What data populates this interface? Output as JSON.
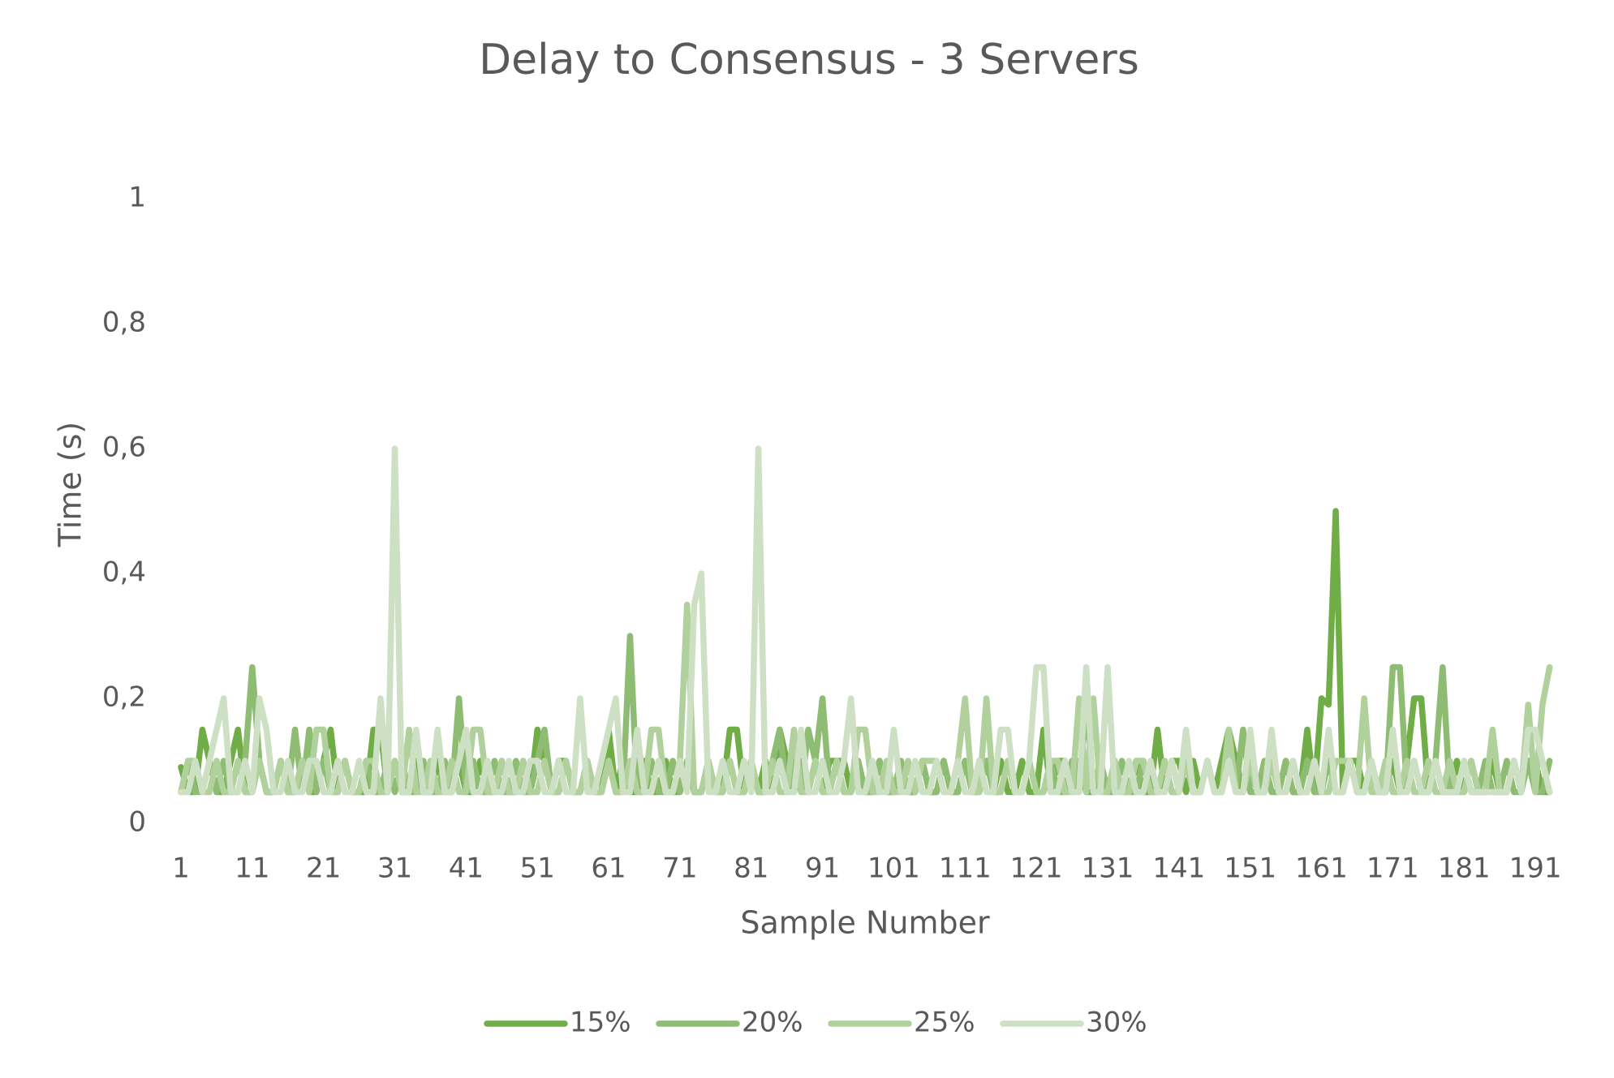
{
  "chart_data": {
    "type": "line",
    "title": "Delay to Consensus - 3 Servers",
    "x_label": "Sample Number",
    "y_label": "Time (s)",
    "x": [
      1,
      2,
      3,
      4,
      5,
      6,
      7,
      8,
      9,
      10,
      11,
      12,
      13,
      14,
      15,
      16,
      17,
      18,
      19,
      20,
      21,
      22,
      23,
      24,
      25,
      26,
      27,
      28,
      29,
      30,
      31,
      32,
      33,
      34,
      35,
      36,
      37,
      38,
      39,
      40,
      41,
      42,
      43,
      44,
      45,
      46,
      47,
      48,
      49,
      50,
      51,
      52,
      53,
      54,
      55,
      56,
      57,
      58,
      59,
      60,
      61,
      62,
      63,
      64,
      65,
      66,
      67,
      68,
      69,
      70,
      71,
      72,
      73,
      74,
      75,
      76,
      77,
      78,
      79,
      80,
      81,
      82,
      83,
      84,
      85,
      86,
      87,
      88,
      89,
      90,
      91,
      92,
      93,
      94,
      95,
      96,
      97,
      98,
      99,
      100,
      101,
      102,
      103,
      104,
      105,
      106,
      107,
      108,
      109,
      110,
      111,
      112,
      113,
      114,
      115,
      116,
      117,
      118,
      119,
      120,
      121,
      122,
      123,
      124,
      125,
      126,
      127,
      128,
      129,
      130,
      131,
      132,
      133,
      134,
      135,
      136,
      137,
      138,
      139,
      140,
      141,
      142,
      143,
      144,
      145,
      146,
      147,
      148,
      149,
      150,
      151,
      152,
      153,
      154,
      155,
      156,
      157,
      158,
      159,
      160,
      161,
      162,
      163,
      164,
      165,
      166,
      167,
      168,
      169,
      170,
      171,
      172,
      173,
      174,
      175,
      176,
      177,
      178,
      179,
      180,
      181,
      182,
      183,
      184,
      185,
      186,
      187,
      188,
      189,
      190,
      191,
      192,
      193
    ],
    "xlim": [
      0.5,
      193.5
    ],
    "xticks": [
      1,
      11,
      21,
      31,
      41,
      51,
      61,
      71,
      81,
      91,
      101,
      111,
      121,
      131,
      141,
      151,
      161,
      171,
      181,
      191
    ],
    "ylim": [
      0,
      1
    ],
    "yticks": [
      0,
      {
        "value": 0.2,
        "label": "0,2"
      },
      {
        "value": 0.4,
        "label": "0,4"
      },
      {
        "value": 0.6,
        "label": "0,6"
      },
      {
        "value": 0.8,
        "label": "0,8"
      },
      1
    ],
    "grid": false,
    "legend": "bottom",
    "series": [
      {
        "name": "15%",
        "color": "#70ad47",
        "values": [
          0.09,
          0.05,
          0.05,
          0.15,
          0.1,
          0.05,
          0.05,
          0.1,
          0.15,
          0.05,
          0.05,
          0.1,
          0.05,
          0.05,
          0.1,
          0.05,
          0.05,
          0.1,
          0.05,
          0.05,
          0.1,
          0.15,
          0.05,
          0.1,
          0.05,
          0.05,
          0.05,
          0.15,
          0.15,
          0.05,
          0.1,
          0.05,
          0.05,
          0.1,
          0.05,
          0.05,
          0.1,
          0.05,
          0.05,
          0.1,
          0.05,
          0.05,
          0.1,
          0.05,
          0.05,
          0.1,
          0.05,
          0.05,
          0.1,
          0.05,
          0.15,
          0.1,
          0.05,
          0.1,
          0.1,
          0.05,
          0.05,
          0.1,
          0.05,
          0.05,
          0.15,
          0.05,
          0.1,
          0.05,
          0.05,
          0.1,
          0.05,
          0.05,
          0.1,
          0.05,
          0.05,
          0.1,
          0.05,
          0.05,
          0.1,
          0.05,
          0.05,
          0.15,
          0.15,
          0.05,
          0.1,
          0.05,
          0.1,
          0.05,
          0.15,
          0.1,
          0.05,
          0.1,
          0.05,
          0.1,
          0.05,
          0.1,
          0.1,
          0.1,
          0.05,
          0.1,
          0.05,
          0.05,
          0.1,
          0.05,
          0.05,
          0.1,
          0.05,
          0.05,
          0.1,
          0.05,
          0.05,
          0.1,
          0.05,
          0.05,
          0.1,
          0.05,
          0.1,
          0.1,
          0.05,
          0.1,
          0.05,
          0.05,
          0.1,
          0.05,
          0.05,
          0.15,
          0.05,
          0.1,
          0.1,
          0.05,
          0.1,
          0.05,
          0.05,
          0.1,
          0.05,
          0.1,
          0.05,
          0.05,
          0.1,
          0.05,
          0.05,
          0.15,
          0.05,
          0.1,
          0.1,
          0.05,
          0.1,
          0.05,
          0.1,
          0.05,
          0.1,
          0.15,
          0.1,
          0.05,
          0.1,
          0.05,
          0.05,
          0.1,
          0.05,
          0.1,
          0.05,
          0.05,
          0.15,
          0.05,
          0.2,
          0.19,
          0.5,
          0.05,
          0.1,
          0.1,
          0.05,
          0.1,
          0.05,
          0.05,
          0.1,
          0.05,
          0.1,
          0.2,
          0.2,
          0.05,
          0.1,
          0.05,
          0.05,
          0.1,
          0.05,
          0.1,
          0.05,
          0.05,
          0.1,
          0.05,
          0.05,
          0.1,
          0.05,
          0.1,
          0.1,
          0.05,
          0.05
        ]
      },
      {
        "name": "20%",
        "color": "#8fbc73",
        "values": [
          0.05,
          0.1,
          0.05,
          0.05,
          0.1,
          0.05,
          0.1,
          0.05,
          0.05,
          0.1,
          0.25,
          0.1,
          0.05,
          0.05,
          0.1,
          0.05,
          0.15,
          0.05,
          0.15,
          0.05,
          0.1,
          0.05,
          0.05,
          0.1,
          0.05,
          0.05,
          0.1,
          0.05,
          0.05,
          0.1,
          0.05,
          0.1,
          0.05,
          0.05,
          0.1,
          0.05,
          0.05,
          0.1,
          0.05,
          0.2,
          0.05,
          0.1,
          0.05,
          0.05,
          0.1,
          0.05,
          0.05,
          0.1,
          0.05,
          0.05,
          0.1,
          0.15,
          0.05,
          0.05,
          0.1,
          0.05,
          0.05,
          0.1,
          0.05,
          0.05,
          0.1,
          0.05,
          0.05,
          0.3,
          0.05,
          0.05,
          0.1,
          0.05,
          0.05,
          0.1,
          0.05,
          0.1,
          0.05,
          0.05,
          0.1,
          0.05,
          0.05,
          0.1,
          0.05,
          0.05,
          0.1,
          0.05,
          0.05,
          0.1,
          0.15,
          0.05,
          0.1,
          0.05,
          0.15,
          0.1,
          0.2,
          0.05,
          0.1,
          0.05,
          0.05,
          0.1,
          0.05,
          0.05,
          0.1,
          0.05,
          0.05,
          0.1,
          0.05,
          0.05,
          0.1,
          0.05,
          0.05,
          0.1,
          0.05,
          0.05,
          0.1,
          0.05,
          0.05,
          0.1,
          0.05,
          0.05,
          0.1,
          0.05,
          0.05,
          0.1,
          0.05,
          0.05,
          0.1,
          0.05,
          0.05,
          0.1,
          0.05,
          0.2,
          0.05,
          0.1,
          0.05,
          0.05,
          0.1,
          0.05,
          0.05,
          0.1,
          0.05,
          0.05,
          0.1,
          0.05,
          0.05,
          0.1,
          0.05,
          0.05,
          0.1,
          0.05,
          0.05,
          0.1,
          0.05,
          0.15,
          0.05,
          0.05,
          0.1,
          0.05,
          0.05,
          0.1,
          0.05,
          0.05,
          0.1,
          0.05,
          0.05,
          0.1,
          0.05,
          0.05,
          0.1,
          0.05,
          0.05,
          0.1,
          0.05,
          0.05,
          0.25,
          0.25,
          0.05,
          0.1,
          0.05,
          0.05,
          0.1,
          0.25,
          0.05,
          0.05,
          0.1,
          0.05,
          0.05,
          0.1,
          0.05,
          0.05,
          0.1,
          0.05,
          0.05,
          0.1,
          0.05,
          0.05,
          0.1
        ]
      },
      {
        "name": "25%",
        "color": "#b0d09c",
        "values": [
          0.05,
          0.1,
          0.1,
          0.05,
          0.05,
          0.1,
          0.05,
          0.05,
          0.1,
          0.05,
          0.05,
          0.1,
          0.05,
          0.05,
          0.1,
          0.05,
          0.05,
          0.1,
          0.05,
          0.15,
          0.15,
          0.05,
          0.05,
          0.1,
          0.05,
          0.05,
          0.1,
          0.1,
          0.05,
          0.05,
          0.1,
          0.05,
          0.15,
          0.05,
          0.05,
          0.1,
          0.05,
          0.05,
          0.1,
          0.05,
          0.05,
          0.15,
          0.15,
          0.05,
          0.05,
          0.1,
          0.05,
          0.05,
          0.1,
          0.05,
          0.05,
          0.1,
          0.05,
          0.05,
          0.1,
          0.05,
          0.05,
          0.1,
          0.05,
          0.05,
          0.1,
          0.05,
          0.05,
          0.1,
          0.05,
          0.05,
          0.15,
          0.15,
          0.05,
          0.05,
          0.1,
          0.35,
          0.05,
          0.05,
          0.1,
          0.05,
          0.05,
          0.1,
          0.05,
          0.05,
          0.1,
          0.05,
          0.05,
          0.1,
          0.05,
          0.05,
          0.15,
          0.05,
          0.05,
          0.1,
          0.05,
          0.05,
          0.1,
          0.05,
          0.05,
          0.15,
          0.15,
          0.05,
          0.05,
          0.1,
          0.05,
          0.05,
          0.1,
          0.05,
          0.1,
          0.1,
          0.1,
          0.05,
          0.05,
          0.1,
          0.2,
          0.05,
          0.05,
          0.2,
          0.05,
          0.05,
          0.1,
          0.05,
          0.05,
          0.1,
          0.05,
          0.05,
          0.1,
          0.1,
          0.05,
          0.05,
          0.2,
          0.05,
          0.2,
          0.05,
          0.05,
          0.1,
          0.05,
          0.05,
          0.1,
          0.1,
          0.05,
          0.05,
          0.1,
          0.05,
          0.05,
          0.1,
          0.05,
          0.05,
          0.1,
          0.05,
          0.05,
          0.15,
          0.05,
          0.05,
          0.1,
          0.05,
          0.05,
          0.1,
          0.05,
          0.05,
          0.1,
          0.05,
          0.05,
          0.1,
          0.05,
          0.05,
          0.1,
          0.1,
          0.1,
          0.05,
          0.2,
          0.05,
          0.05,
          0.1,
          0.05,
          0.05,
          0.1,
          0.05,
          0.05,
          0.1,
          0.05,
          0.05,
          0.1,
          0.05,
          0.05,
          0.1,
          0.05,
          0.05,
          0.15,
          0.05,
          0.05,
          0.1,
          0.05,
          0.19,
          0.05,
          0.19,
          0.25
        ]
      },
      {
        "name": "30%",
        "color": "#cde0c4",
        "values": [
          0.05,
          0.05,
          0.1,
          0.05,
          0.1,
          0.15,
          0.2,
          0.05,
          0.05,
          0.1,
          0.05,
          0.2,
          0.15,
          0.05,
          0.05,
          0.1,
          0.05,
          0.05,
          0.1,
          0.1,
          0.05,
          0.05,
          0.1,
          0.05,
          0.05,
          0.1,
          0.05,
          0.05,
          0.2,
          0.05,
          0.6,
          0.05,
          0.05,
          0.15,
          0.05,
          0.05,
          0.15,
          0.05,
          0.05,
          0.1,
          0.15,
          0.05,
          0.05,
          0.1,
          0.05,
          0.05,
          0.1,
          0.05,
          0.05,
          0.1,
          0.1,
          0.05,
          0.05,
          0.1,
          0.05,
          0.05,
          0.2,
          0.05,
          0.05,
          0.1,
          0.15,
          0.2,
          0.05,
          0.05,
          0.15,
          0.05,
          0.05,
          0.1,
          0.05,
          0.05,
          0.1,
          0.05,
          0.35,
          0.4,
          0.05,
          0.05,
          0.1,
          0.05,
          0.05,
          0.1,
          0.05,
          0.6,
          0.05,
          0.05,
          0.1,
          0.05,
          0.05,
          0.15,
          0.05,
          0.05,
          0.1,
          0.05,
          0.05,
          0.1,
          0.2,
          0.05,
          0.05,
          0.1,
          0.05,
          0.05,
          0.15,
          0.05,
          0.05,
          0.1,
          0.05,
          0.05,
          0.1,
          0.05,
          0.05,
          0.1,
          0.05,
          0.05,
          0.1,
          0.05,
          0.05,
          0.15,
          0.15,
          0.05,
          0.05,
          0.1,
          0.25,
          0.25,
          0.05,
          0.05,
          0.1,
          0.05,
          0.05,
          0.25,
          0.05,
          0.05,
          0.25,
          0.05,
          0.05,
          0.1,
          0.05,
          0.05,
          0.1,
          0.05,
          0.05,
          0.1,
          0.05,
          0.15,
          0.05,
          0.05,
          0.1,
          0.05,
          0.05,
          0.1,
          0.05,
          0.05,
          0.15,
          0.05,
          0.05,
          0.15,
          0.05,
          0.05,
          0.1,
          0.05,
          0.05,
          0.1,
          0.05,
          0.15,
          0.05,
          0.05,
          0.1,
          0.05,
          0.05,
          0.1,
          0.05,
          0.05,
          0.15,
          0.05,
          0.05,
          0.1,
          0.05,
          0.05,
          0.1,
          0.05,
          0.05,
          0.05,
          0.1,
          0.05,
          0.05,
          0.05,
          0.05,
          0.05,
          0.05,
          0.1,
          0.05,
          0.15,
          0.15,
          0.1,
          0.05
        ]
      }
    ]
  }
}
